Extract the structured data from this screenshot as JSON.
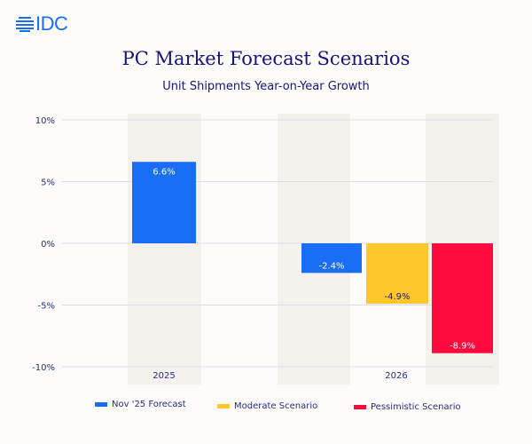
{
  "logo": {
    "text": "IDC"
  },
  "colors": {
    "blue": "#1a6ef5",
    "yellow": "#ffc72c",
    "red": "#ff0a3c",
    "band": "#f5f1ec",
    "text": "#14147a"
  },
  "chart_data": {
    "type": "bar",
    "title": "PC Market Forecast Scenarios",
    "subtitle": "Unit Shipments Year-on-Year Growth",
    "categories": [
      "2025",
      "2026"
    ],
    "series": [
      {
        "name": "Nov '25 Forecast",
        "color": "#1a6ef5",
        "values": [
          6.6,
          -2.4
        ],
        "labels": [
          "6.6%",
          "-2.4%"
        ]
      },
      {
        "name": "Moderate Scenario",
        "color": "#ffc72c",
        "values": [
          null,
          -4.9
        ],
        "labels": [
          null,
          "-4.9%"
        ]
      },
      {
        "name": "Pessimistic Scenario",
        "color": "#ff0a3c",
        "values": [
          null,
          -8.9
        ],
        "labels": [
          null,
          "-8.9%"
        ]
      }
    ],
    "yticks": [
      10,
      5,
      0,
      -5,
      -10
    ],
    "ytick_labels": [
      "10%",
      "5%",
      "0%",
      "-5%",
      "-10%"
    ],
    "ylim": [
      -10,
      10
    ],
    "grid": true,
    "legend": "bottom"
  }
}
